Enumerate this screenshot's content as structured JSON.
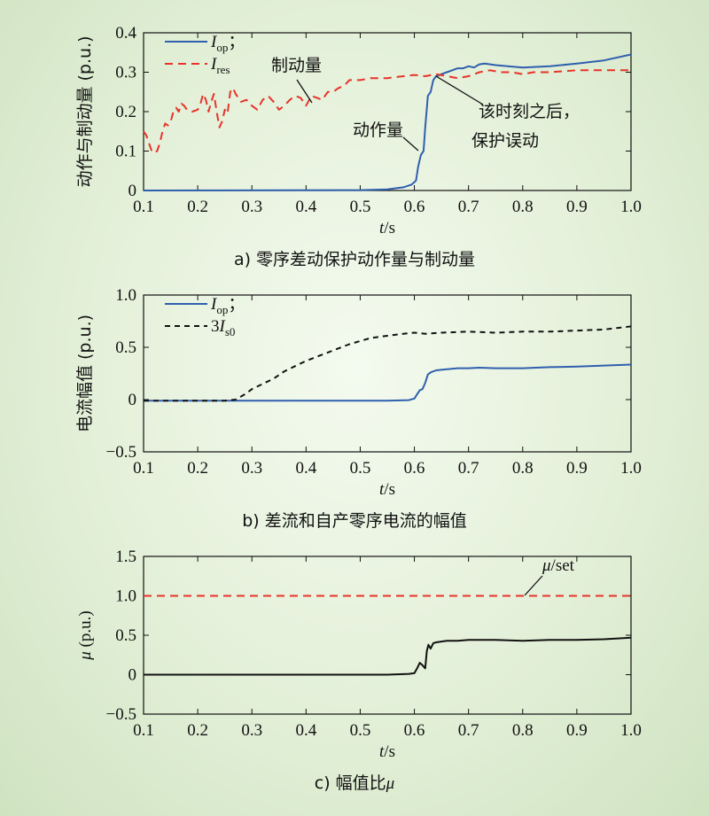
{
  "chart_data": [
    {
      "type": "line",
      "caption": "a) 零序差动保护动作量与制动量",
      "ylabel": "动作与制动量 (p.u.)",
      "xlabel_var": "t",
      "xlabel_unit": "/s",
      "xlim": [
        0.1,
        1.0
      ],
      "ylim": [
        0,
        0.4
      ],
      "x_ticks": [
        "0.1",
        "0.2",
        "0.3",
        "0.4",
        "0.5",
        "0.6",
        "0.7",
        "0.8",
        "0.9",
        "1.0"
      ],
      "y_ticks": [
        "0",
        "0.1",
        "0.2",
        "0.3",
        "0.4"
      ],
      "legend": [
        {
          "base": "I",
          "sub": "op",
          "suffix": "；",
          "color": "#2f5fae",
          "dash": ""
        },
        {
          "base": "I",
          "sub": "res",
          "suffix": "",
          "color": "#e8332a",
          "dash": "9,6"
        }
      ],
      "annotations": {
        "restraint": "制动量",
        "operate": "动作量",
        "note_line1": "该时刻之后，",
        "note_line2": "保护误动"
      },
      "series": [
        {
          "name": "I_op",
          "color": "#2f5fae",
          "dash": "",
          "x": [
            0.1,
            0.5,
            0.55,
            0.58,
            0.595,
            0.603,
            0.607,
            0.612,
            0.617,
            0.62,
            0.625,
            0.63,
            0.635,
            0.64,
            0.645,
            0.65,
            0.66,
            0.67,
            0.68,
            0.69,
            0.7,
            0.71,
            0.72,
            0.73,
            0.75,
            0.8,
            0.85,
            0.9,
            0.95,
            1.0
          ],
          "y": [
            0,
            0.001,
            0.003,
            0.008,
            0.015,
            0.025,
            0.06,
            0.09,
            0.1,
            0.16,
            0.24,
            0.25,
            0.28,
            0.29,
            0.292,
            0.295,
            0.3,
            0.305,
            0.31,
            0.31,
            0.315,
            0.312,
            0.32,
            0.322,
            0.318,
            0.312,
            0.315,
            0.322,
            0.33,
            0.345
          ]
        },
        {
          "name": "I_res",
          "color": "#e8332a",
          "dash": "9,6",
          "x": [
            0.1,
            0.105,
            0.11,
            0.115,
            0.12,
            0.125,
            0.13,
            0.135,
            0.14,
            0.145,
            0.15,
            0.155,
            0.16,
            0.165,
            0.17,
            0.175,
            0.18,
            0.19,
            0.2,
            0.205,
            0.21,
            0.215,
            0.22,
            0.225,
            0.23,
            0.235,
            0.24,
            0.245,
            0.25,
            0.255,
            0.26,
            0.265,
            0.27,
            0.28,
            0.29,
            0.3,
            0.31,
            0.32,
            0.33,
            0.34,
            0.35,
            0.36,
            0.37,
            0.38,
            0.39,
            0.4,
            0.41,
            0.42,
            0.43,
            0.44,
            0.45,
            0.46,
            0.47,
            0.48,
            0.5,
            0.52,
            0.55,
            0.58,
            0.6,
            0.62,
            0.64,
            0.66,
            0.68,
            0.7,
            0.72,
            0.74,
            0.76,
            0.78,
            0.8,
            0.82,
            0.85,
            0.9,
            0.95,
            1.0
          ],
          "y": [
            0.15,
            0.14,
            0.12,
            0.1,
            0.095,
            0.1,
            0.12,
            0.15,
            0.17,
            0.165,
            0.175,
            0.2,
            0.21,
            0.2,
            0.22,
            0.215,
            0.205,
            0.2,
            0.205,
            0.22,
            0.245,
            0.23,
            0.2,
            0.225,
            0.245,
            0.2,
            0.16,
            0.175,
            0.205,
            0.195,
            0.25,
            0.26,
            0.245,
            0.225,
            0.23,
            0.215,
            0.205,
            0.23,
            0.24,
            0.225,
            0.205,
            0.215,
            0.23,
            0.24,
            0.235,
            0.215,
            0.24,
            0.235,
            0.23,
            0.25,
            0.25,
            0.26,
            0.265,
            0.28,
            0.28,
            0.285,
            0.285,
            0.29,
            0.293,
            0.29,
            0.295,
            0.29,
            0.285,
            0.29,
            0.3,
            0.305,
            0.3,
            0.3,
            0.295,
            0.3,
            0.3,
            0.305,
            0.305,
            0.305
          ]
        }
      ]
    },
    {
      "type": "line",
      "caption": "b) 差流和自产零序电流的幅值",
      "ylabel": "电流幅值 (p.u.)",
      "xlabel_var": "t",
      "xlabel_unit": "/s",
      "xlim": [
        0.1,
        1.0
      ],
      "ylim": [
        -0.5,
        1.0
      ],
      "x_ticks": [
        "0.1",
        "0.2",
        "0.3",
        "0.4",
        "0.5",
        "0.6",
        "0.7",
        "0.8",
        "0.9",
        "1.0"
      ],
      "y_ticks": [
        "−0.5",
        "0",
        "0.5",
        "1.0"
      ],
      "legend": [
        {
          "base": "I",
          "sub": "op",
          "suffix": "；",
          "color": "#2f5fae",
          "dash": "",
          "prefix": ""
        },
        {
          "base": "I",
          "sub": "s0",
          "suffix": "",
          "color": "#111111",
          "dash": "6,5",
          "prefix": "3"
        }
      ],
      "series": [
        {
          "name": "I_op",
          "color": "#2f5fae",
          "dash": "",
          "x": [
            0.1,
            0.55,
            0.59,
            0.6,
            0.605,
            0.61,
            0.615,
            0.62,
            0.625,
            0.63,
            0.64,
            0.66,
            0.68,
            0.7,
            0.72,
            0.75,
            0.8,
            0.85,
            0.9,
            0.95,
            1.0
          ],
          "y": [
            -0.01,
            -0.01,
            -0.005,
            0.01,
            0.05,
            0.09,
            0.1,
            0.16,
            0.24,
            0.26,
            0.28,
            0.29,
            0.3,
            0.3,
            0.305,
            0.3,
            0.3,
            0.31,
            0.315,
            0.325,
            0.335
          ]
        },
        {
          "name": "3I_s0",
          "color": "#111111",
          "dash": "6,5",
          "x": [
            0.1,
            0.25,
            0.27,
            0.28,
            0.29,
            0.3,
            0.32,
            0.34,
            0.36,
            0.38,
            0.4,
            0.42,
            0.44,
            0.46,
            0.48,
            0.5,
            0.52,
            0.55,
            0.58,
            0.6,
            0.62,
            0.65,
            0.7,
            0.75,
            0.8,
            0.85,
            0.9,
            0.95,
            1.0
          ],
          "y": [
            -0.01,
            -0.01,
            0.0,
            0.03,
            0.06,
            0.1,
            0.15,
            0.2,
            0.27,
            0.32,
            0.37,
            0.41,
            0.45,
            0.49,
            0.53,
            0.56,
            0.59,
            0.61,
            0.63,
            0.64,
            0.63,
            0.64,
            0.65,
            0.64,
            0.65,
            0.65,
            0.66,
            0.67,
            0.7
          ]
        }
      ]
    },
    {
      "type": "line",
      "caption_prefix": "c) 幅值比",
      "caption_var": "μ",
      "ylabel_var": "μ",
      "ylabel_unit": " (p.u.)",
      "xlabel_var": "t",
      "xlabel_unit": "/s",
      "xlim": [
        0.1,
        1.0
      ],
      "ylim": [
        -0.5,
        1.5
      ],
      "x_ticks": [
        "0.1",
        "0.2",
        "0.3",
        "0.4",
        "0.5",
        "0.6",
        "0.7",
        "0.8",
        "0.9",
        "1.0"
      ],
      "y_ticks": [
        "−0.5",
        "0",
        "0.5",
        "1.0",
        "1.5"
      ],
      "annotations": {
        "set_var": "μ",
        "set_text": "/set"
      },
      "series": [
        {
          "name": "μ",
          "color": "#111111",
          "dash": "",
          "x": [
            0.1,
            0.55,
            0.59,
            0.6,
            0.605,
            0.61,
            0.615,
            0.62,
            0.623,
            0.626,
            0.63,
            0.635,
            0.64,
            0.65,
            0.66,
            0.68,
            0.7,
            0.75,
            0.8,
            0.85,
            0.9,
            0.95,
            1.0
          ],
          "y": [
            0.0,
            0.0,
            0.01,
            0.02,
            0.08,
            0.15,
            0.12,
            0.08,
            0.3,
            0.38,
            0.33,
            0.4,
            0.41,
            0.42,
            0.43,
            0.43,
            0.44,
            0.44,
            0.43,
            0.44,
            0.44,
            0.45,
            0.47
          ]
        },
        {
          "name": "μ/set",
          "color": "#e8332a",
          "dash": "9,6",
          "x": [
            0.1,
            1.0
          ],
          "y": [
            1.0,
            1.0
          ]
        }
      ]
    }
  ]
}
